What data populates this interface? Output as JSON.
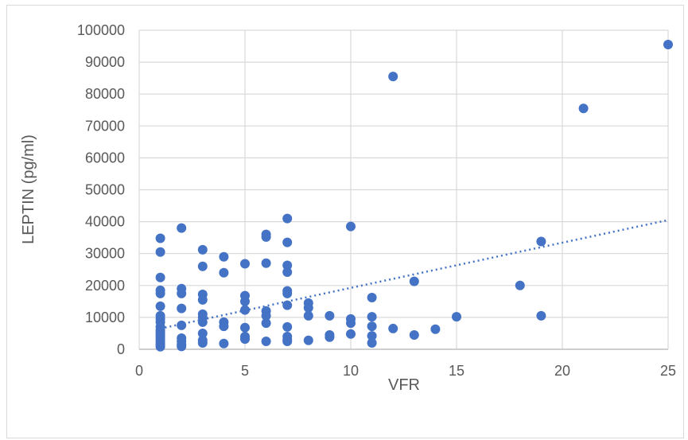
{
  "chart_data": {
    "type": "scatter",
    "xlabel": "VFR",
    "ylabel": "LEPTIN (pg/ml)",
    "xlim": [
      0,
      25
    ],
    "ylim": [
      0,
      100000
    ],
    "x_ticks": [
      "0",
      "5",
      "10",
      "15",
      "20",
      "25"
    ],
    "y_ticks": [
      "0",
      "10000",
      "20000",
      "30000",
      "40000",
      "50000",
      "60000",
      "70000",
      "80000",
      "90000",
      "100000"
    ],
    "grid": "vertical and horizontal major gridlines",
    "legend": "none",
    "marker_color": "#4472C4",
    "trendline": {
      "style": "dotted linear",
      "from": [
        1,
        6500
      ],
      "to": [
        25,
        40500
      ]
    },
    "points": [
      [
        1,
        34800
      ],
      [
        1,
        30500
      ],
      [
        1,
        22500
      ],
      [
        1,
        18500
      ],
      [
        1,
        17500
      ],
      [
        1,
        13500
      ],
      [
        1,
        10500
      ],
      [
        1,
        9500
      ],
      [
        1,
        8500
      ],
      [
        1,
        7000
      ],
      [
        1,
        6000
      ],
      [
        1,
        5200
      ],
      [
        1,
        4500
      ],
      [
        1,
        3800
      ],
      [
        1,
        3000
      ],
      [
        1,
        2200
      ],
      [
        1,
        1500
      ],
      [
        1,
        800
      ],
      [
        2,
        38000
      ],
      [
        2,
        19000
      ],
      [
        2,
        17500
      ],
      [
        2,
        12800
      ],
      [
        2,
        7500
      ],
      [
        2,
        3500
      ],
      [
        2,
        2500
      ],
      [
        2,
        1500
      ],
      [
        2,
        900
      ],
      [
        3,
        31200
      ],
      [
        3,
        26000
      ],
      [
        3,
        17200
      ],
      [
        3,
        15500
      ],
      [
        3,
        11000
      ],
      [
        3,
        10000
      ],
      [
        3,
        8500
      ],
      [
        3,
        5000
      ],
      [
        3,
        2800
      ],
      [
        3,
        2000
      ],
      [
        4,
        29000
      ],
      [
        4,
        24000
      ],
      [
        4,
        8500
      ],
      [
        4,
        7200
      ],
      [
        4,
        1800
      ],
      [
        5,
        26800
      ],
      [
        5,
        16800
      ],
      [
        5,
        15000
      ],
      [
        5,
        12300
      ],
      [
        5,
        6800
      ],
      [
        5,
        4000
      ],
      [
        5,
        3200
      ],
      [
        6,
        36000
      ],
      [
        6,
        35200
      ],
      [
        6,
        27000
      ],
      [
        6,
        12000
      ],
      [
        6,
        10500
      ],
      [
        6,
        8200
      ],
      [
        6,
        2500
      ],
      [
        7,
        41000
      ],
      [
        7,
        33500
      ],
      [
        7,
        26300
      ],
      [
        7,
        24200
      ],
      [
        7,
        18300
      ],
      [
        7,
        17500
      ],
      [
        7,
        13800
      ],
      [
        7,
        7000
      ],
      [
        7,
        4000
      ],
      [
        7,
        3000
      ],
      [
        7,
        2500
      ],
      [
        8,
        14500
      ],
      [
        8,
        13000
      ],
      [
        8,
        10500
      ],
      [
        8,
        2800
      ],
      [
        9,
        10500
      ],
      [
        9,
        4500
      ],
      [
        9,
        3800
      ],
      [
        10,
        38500
      ],
      [
        10,
        9500
      ],
      [
        10,
        8200
      ],
      [
        10,
        4800
      ],
      [
        11,
        16200
      ],
      [
        11,
        10200
      ],
      [
        11,
        7200
      ],
      [
        11,
        4200
      ],
      [
        11,
        2000
      ],
      [
        12,
        85500
      ],
      [
        12,
        6500
      ],
      [
        13,
        21300
      ],
      [
        13,
        4500
      ],
      [
        14,
        6300
      ],
      [
        15,
        10200
      ],
      [
        18,
        20000
      ],
      [
        19,
        33800
      ],
      [
        19,
        10500
      ],
      [
        21,
        75500
      ],
      [
        25,
        95500
      ]
    ]
  }
}
